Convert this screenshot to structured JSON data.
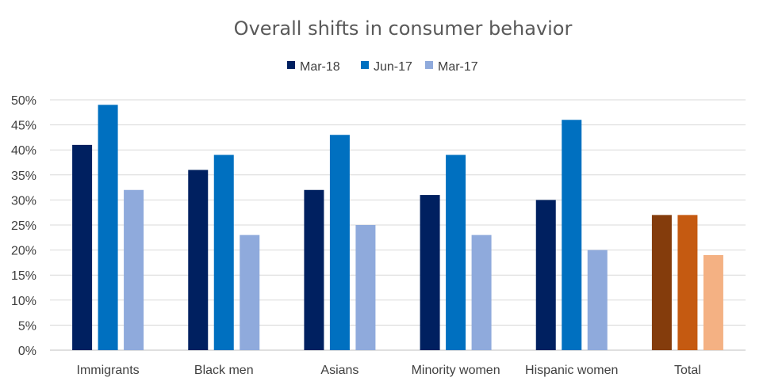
{
  "chart_data": {
    "type": "bar",
    "title": "Overall shifts in consumer behavior",
    "xlabel": "",
    "ylabel": "",
    "ylim": [
      0,
      0.5
    ],
    "yticks": [
      "0%",
      "5%",
      "10%",
      "15%",
      "20%",
      "25%",
      "30%",
      "35%",
      "40%",
      "45%",
      "50%"
    ],
    "categories": [
      "Immigrants",
      "Black men",
      "Asians",
      "Minority women",
      "Hispanic women",
      "Total"
    ],
    "series": [
      {
        "name": "Mar-18",
        "color": "#002060",
        "values": [
          0.41,
          0.36,
          0.32,
          0.31,
          0.3,
          0.27
        ]
      },
      {
        "name": "Jun-17",
        "color": "#0070C0",
        "values": [
          0.49,
          0.39,
          0.43,
          0.39,
          0.46,
          0.27
        ]
      },
      {
        "name": "Mar-17",
        "color": "#8FAADC",
        "values": [
          0.32,
          0.23,
          0.25,
          0.23,
          0.2,
          0.19
        ]
      }
    ],
    "highlight_category": "Total",
    "highlight_colors": [
      "#843C0C",
      "#C55A11",
      "#F4B183"
    ],
    "legend_position": "top-center",
    "grid": true
  }
}
